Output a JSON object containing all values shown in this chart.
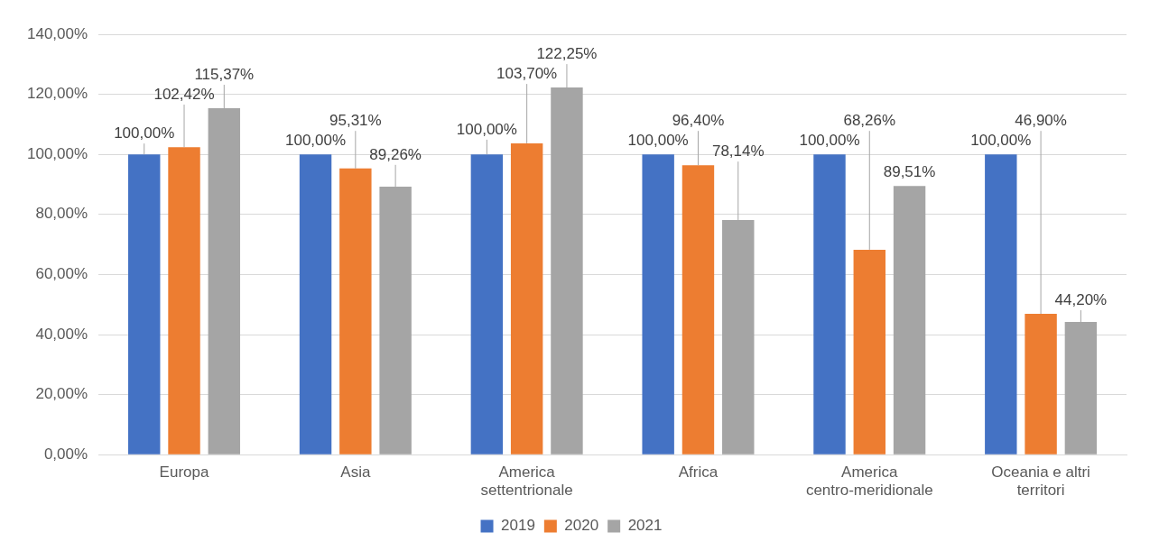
{
  "chart_data": {
    "type": "bar",
    "categories": [
      "Europa",
      "Asia",
      "America settentrionale",
      "Africa",
      "America centro-meridionale",
      "Oceania e altri territori"
    ],
    "series": [
      {
        "name": "2019",
        "color": "#4472c4",
        "values": [
          100,
          100,
          100,
          100,
          100,
          100
        ],
        "value_labels": [
          "100,00%",
          "100,00%",
          "100,00%",
          "100,00%",
          "100,00%",
          "100,00%"
        ]
      },
      {
        "name": "2020",
        "color": "#ed7d31",
        "values": [
          102.42,
          95.31,
          103.7,
          96.4,
          68.26,
          46.9
        ],
        "value_labels": [
          "102,42%",
          "95,31%",
          "103,70%",
          "96,40%",
          "68,26%",
          "46,90%"
        ]
      },
      {
        "name": "2021",
        "color": "#a5a5a5",
        "values": [
          115.37,
          89.26,
          122.25,
          78.14,
          89.51,
          44.2
        ],
        "value_labels": [
          "115,37%",
          "89,26%",
          "122,25%",
          "78,14%",
          "89,51%",
          "44,20%"
        ]
      }
    ],
    "ylim": [
      0,
      140
    ],
    "yticks": [
      {
        "value": 0,
        "label": "0,00%"
      },
      {
        "value": 20,
        "label": "20,00%"
      },
      {
        "value": 40,
        "label": "40,00%"
      },
      {
        "value": 60,
        "label": "60,00%"
      },
      {
        "value": 80,
        "label": "80,00%"
      },
      {
        "value": 100,
        "label": "100,00%"
      },
      {
        "value": 120,
        "label": "120,00%"
      },
      {
        "value": 140,
        "label": "140,00%"
      }
    ],
    "grid": "y",
    "legend": "bottom"
  }
}
